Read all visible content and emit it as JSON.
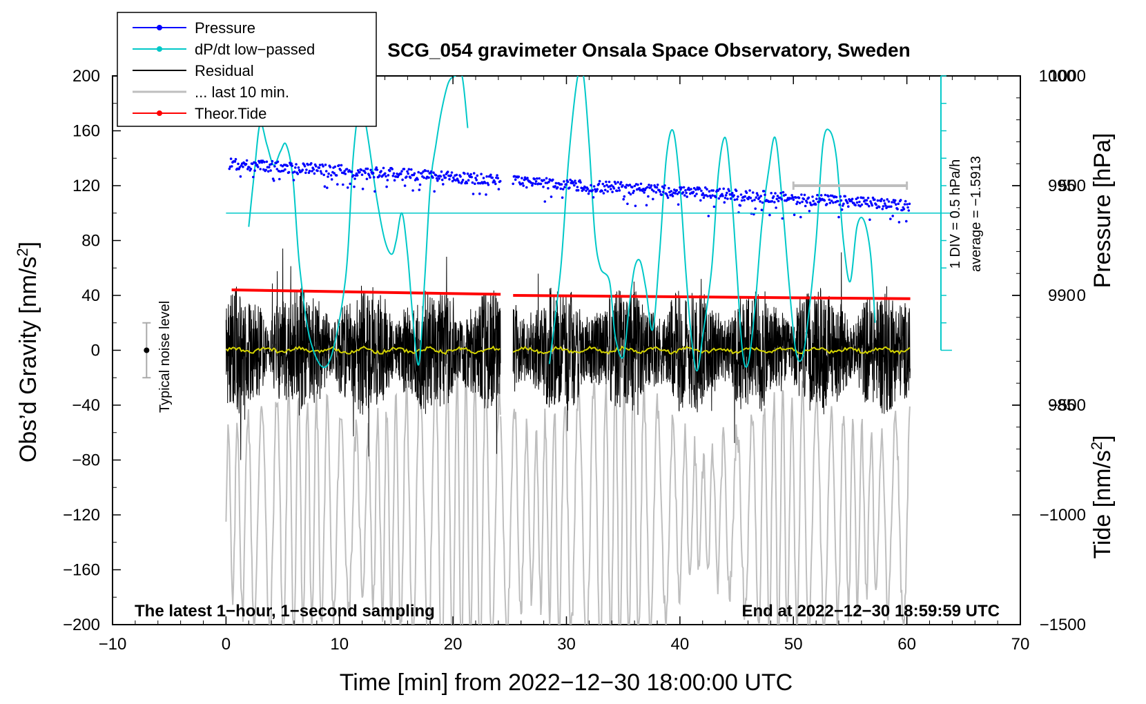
{
  "chart_data": {
    "type": "line",
    "title": "SCG_054 gravimeter Onsala Space Observatory, Sweden",
    "xlabel": "Time [min] from 2022−12−30 18:00:00 UTC",
    "ylabel": "Obs’d Gravity [nm/s²]",
    "ylabel_main": "Obs’d Gravity [nm/s",
    "ylabel_unit_sup": "2",
    "ylabel_close": "]",
    "y2label_pressure": "Pressure [hPa]",
    "y2label_tide": "Tide [nm/s²]",
    "y2label_tide_main": "Tide [nm/s",
    "y2label_tide_sup": "2",
    "y2label_tide_close": "]",
    "xlim": [
      -10,
      70
    ],
    "ylim": [
      -200,
      200
    ],
    "x_ticks": [
      -10,
      0,
      10,
      20,
      30,
      40,
      50,
      60,
      70
    ],
    "x_tick_labels": [
      "−10",
      "0",
      "10",
      "20",
      "30",
      "40",
      "50",
      "60",
      "70"
    ],
    "y_ticks": [
      -200,
      -160,
      -120,
      -80,
      -40,
      0,
      40,
      80,
      120,
      160,
      200
    ],
    "y_tick_labels": [
      "−200",
      "−160",
      "−120",
      "−80",
      "−40",
      "0",
      "40",
      "80",
      "120",
      "160",
      "200"
    ],
    "pressure_axis": {
      "range": [
        975,
        1000
      ],
      "ticks": [
        985,
        990,
        995,
        1000
      ],
      "tick_labels": [
        "985",
        "990",
        "995",
        "1000"
      ]
    },
    "tide_axis": {
      "range": [
        -1500,
        1000
      ],
      "ticks": [
        -1500,
        -1000,
        -500,
        0,
        500,
        1000
      ],
      "tick_labels": [
        "−1500",
        "−1000",
        "−500",
        "0",
        "500",
        "1000"
      ]
    },
    "legend": [
      {
        "label": "Pressure",
        "color": "#0000ff",
        "marker": true
      },
      {
        "label": "dP/dt low−passed",
        "color": "#00c8c8",
        "marker": true
      },
      {
        "label": "Residual",
        "color": "#000000",
        "marker": false
      },
      {
        "label": "... last 10 min.",
        "color": "#bebebe",
        "marker": false
      },
      {
        "label": "Theor.Tide",
        "color": "#ff0000",
        "marker": true
      }
    ],
    "colors": {
      "pressure": "#0000ff",
      "dpdt": "#00c8c8",
      "residual": "#000000",
      "last10": "#bebebe",
      "tide": "#ff0000",
      "smooth": "#d4d400"
    },
    "series": [
      {
        "name": "Pressure",
        "axis": "pressure_hPa",
        "segments": [
          [
            0.3,
            24.2
          ],
          [
            25.3,
            60.3
          ]
        ],
        "start": 996.0,
        "end": 994.1
      },
      {
        "name": "dP/dt low−passed",
        "axis": "gravity_scaled",
        "x": [
          2.0,
          2.5,
          3.0,
          3.6,
          4.2,
          4.8,
          5.3,
          5.9,
          6.5,
          7.5,
          9.0,
          10.5,
          11.2,
          11.8,
          12.2,
          12.6,
          13.3,
          14.0,
          14.6,
          15.0,
          15.5,
          16.0,
          16.5,
          17.0,
          17.5,
          18.0,
          18.5,
          19.0,
          19.6,
          20.2,
          20.8,
          21.3,
          28.5,
          29.5,
          30.2,
          31.0,
          31.5,
          32.0,
          32.5,
          33.0,
          33.8,
          34.3,
          35.0,
          35.5,
          36.0,
          36.5,
          37.0,
          37.6,
          38.2,
          38.8,
          39.4,
          40.0,
          40.5,
          41.0,
          41.5,
          42.0,
          42.8,
          43.4,
          44.0,
          44.5,
          45.0,
          45.5,
          46.0,
          46.6,
          47.2,
          47.8,
          48.4,
          49.0,
          49.6,
          50.2,
          50.8,
          51.4,
          52.0,
          52.6,
          53.2,
          53.8,
          54.4,
          55.0,
          55.6,
          56.2,
          56.8,
          57.2
        ],
        "y": [
          90,
          130,
          165,
          150,
          135,
          145,
          150,
          125,
          60,
          5,
          -10,
          50,
          140,
          180,
          170,
          150,
          110,
          80,
          70,
          80,
          100,
          70,
          20,
          -10,
          50,
          120,
          150,
          175,
          195,
          200,
          200,
          162,
          -10,
          60,
          140,
          200,
          200,
          150,
          85,
          60,
          50,
          10,
          -5,
          30,
          60,
          65,
          45,
          15,
          70,
          140,
          160,
          120,
          60,
          10,
          -15,
          10,
          60,
          130,
          155,
          120,
          60,
          0,
          -10,
          30,
          90,
          130,
          155,
          110,
          50,
          0,
          -5,
          30,
          80,
          150,
          160,
          140,
          80,
          50,
          90,
          95,
          70,
          20
        ]
      },
      {
        "name": "Residual",
        "axis": "gravity",
        "segments": [
          [
            0.0,
            24.2
          ],
          [
            25.3,
            60.3
          ]
        ],
        "amplitude_range": [
          -80,
          80
        ]
      },
      {
        "name": "... last 10 min.",
        "axis": "gravity_scaled",
        "segments": [
          [
            0.0,
            24.2
          ],
          [
            24.2,
            60.3
          ]
        ],
        "center": -120,
        "amplitude_range": [
          -210,
          -40
        ]
      },
      {
        "name": "Theor.Tide",
        "axis": "tide_nm_s2",
        "x": [
          0.5,
          24.2,
          25.3,
          60.3
        ],
        "y": [
          25,
          5,
          0,
          -15
        ]
      }
    ],
    "annotations": {
      "noise_label": "Typical noise level",
      "noise_bar": {
        "x": -7,
        "y": 0,
        "err": 20
      },
      "div_label": "1 DIV = 0.5 hPa/h",
      "average_label": "average = −1.5913",
      "ten_min_bar": [
        50,
        60
      ],
      "bottom_left": "The latest 1−hour, 1−second sampling",
      "bottom_right": "End at 2022−12−30 18:59:59 UTC"
    }
  }
}
